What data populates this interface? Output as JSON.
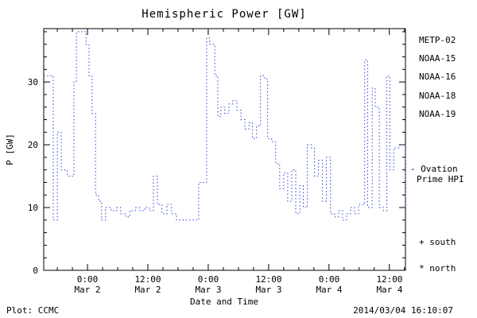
{
  "title": "Hemispheric Power [GW]",
  "axes": {
    "ylabel": "P [GW]",
    "xlabel": "Date and Time",
    "y_ticks": [
      "0",
      "10",
      "20",
      "30"
    ],
    "x_ticks": [
      {
        "time": "0:00",
        "date": "Mar 2"
      },
      {
        "time": "12:00",
        "date": "Mar 2"
      },
      {
        "time": "0:00",
        "date": "Mar 3"
      },
      {
        "time": "12:00",
        "date": "Mar 3"
      },
      {
        "time": "0:00",
        "date": "Mar 4"
      },
      {
        "time": "12:00",
        "date": "Mar 4"
      }
    ]
  },
  "legend": {
    "satellites": [
      {
        "label": "METP-02",
        "color": "#1b1b66"
      },
      {
        "label": "NOAA-15",
        "color": "#2a3fd4"
      },
      {
        "label": "NOAA-16",
        "color": "#27b7d8"
      },
      {
        "label": "NOAA-18",
        "color": "#57c98b"
      },
      {
        "label": "NOAA-19",
        "color": "#ff9c2a"
      }
    ],
    "ovation_note": {
      "line1": "- Ovation",
      "line2": "Prime HPI",
      "color": "#2a3fd4"
    },
    "markers": [
      {
        "label": "+ south"
      },
      {
        "label": "* north"
      }
    ]
  },
  "footer": {
    "left": "Plot: CCMC",
    "right": "2014/03/04 16:10:07"
  },
  "chart_data": {
    "type": "line",
    "title": "Hemispheric Power [GW]",
    "xlabel": "Date and Time",
    "ylabel": "P [GW]",
    "x_unit": "hours since 2014-03-02 00:00 UT",
    "xlim": [
      -8.7,
      63.2
    ],
    "ylim": [
      0,
      38.5
    ],
    "x_major_ticks_hours": [
      0,
      12,
      24,
      36,
      48,
      60
    ],
    "x_minor_step_hours": 3,
    "y_major_ticks": [
      0,
      10,
      20,
      30
    ],
    "y_minor_step": 2,
    "grid": false,
    "legend_position": "right-outside",
    "series": [
      {
        "name": "Ovation Prime HPI",
        "color": "#2a3fd4",
        "line_style": "dotted-step",
        "points": [
          [
            -8.7,
            31
          ],
          [
            -6.8,
            8
          ],
          [
            -6.0,
            22
          ],
          [
            -5.2,
            16
          ],
          [
            -4.0,
            15
          ],
          [
            -2.7,
            30
          ],
          [
            -2.2,
            38
          ],
          [
            -0.3,
            36
          ],
          [
            0.3,
            31
          ],
          [
            0.9,
            25
          ],
          [
            1.6,
            12
          ],
          [
            2.2,
            11
          ],
          [
            2.8,
            8
          ],
          [
            3.6,
            10
          ],
          [
            4.7,
            9.5
          ],
          [
            5.8,
            10
          ],
          [
            6.6,
            9
          ],
          [
            7.6,
            8.5
          ],
          [
            8.4,
            9.5
          ],
          [
            9.5,
            10
          ],
          [
            10.4,
            9.5
          ],
          [
            11.4,
            10
          ],
          [
            12.3,
            9.5
          ],
          [
            13.1,
            15
          ],
          [
            13.9,
            10.5
          ],
          [
            14.8,
            9
          ],
          [
            15.8,
            10.5
          ],
          [
            16.7,
            9
          ],
          [
            17.7,
            8
          ],
          [
            22.1,
            14
          ],
          [
            23.7,
            37
          ],
          [
            24.3,
            36
          ],
          [
            25.3,
            31
          ],
          [
            25.9,
            24.5
          ],
          [
            26.5,
            26
          ],
          [
            27.3,
            25
          ],
          [
            28.1,
            26.5
          ],
          [
            28.9,
            27
          ],
          [
            29.7,
            25.5
          ],
          [
            30.5,
            24
          ],
          [
            31.3,
            22.5
          ],
          [
            32.1,
            23.5
          ],
          [
            32.8,
            21
          ],
          [
            33.6,
            23
          ],
          [
            34.4,
            31
          ],
          [
            35.2,
            30.5
          ],
          [
            35.8,
            21
          ],
          [
            36.6,
            20.5
          ],
          [
            37.4,
            17
          ],
          [
            38.2,
            13
          ],
          [
            39.0,
            15.5
          ],
          [
            39.8,
            11
          ],
          [
            40.6,
            16
          ],
          [
            41.4,
            9
          ],
          [
            42.2,
            13.5
          ],
          [
            42.9,
            10
          ],
          [
            43.7,
            20
          ],
          [
            44.5,
            19.5
          ],
          [
            45.1,
            15
          ],
          [
            45.9,
            17.5
          ],
          [
            46.7,
            11
          ],
          [
            47.5,
            18
          ],
          [
            48.3,
            9
          ],
          [
            49.1,
            8.5
          ],
          [
            49.9,
            9.5
          ],
          [
            50.7,
            8
          ],
          [
            51.5,
            9
          ],
          [
            52.3,
            10
          ],
          [
            53.1,
            9
          ],
          [
            53.9,
            10.5
          ],
          [
            55.1,
            33.5
          ],
          [
            55.7,
            10
          ],
          [
            56.6,
            29
          ],
          [
            57.2,
            26
          ],
          [
            58.0,
            10
          ],
          [
            58.8,
            9.5
          ],
          [
            59.5,
            31
          ],
          [
            60.1,
            16
          ],
          [
            60.9,
            19.5
          ],
          [
            62.0,
            20
          ],
          [
            63.2,
            10
          ]
        ]
      }
    ]
  }
}
